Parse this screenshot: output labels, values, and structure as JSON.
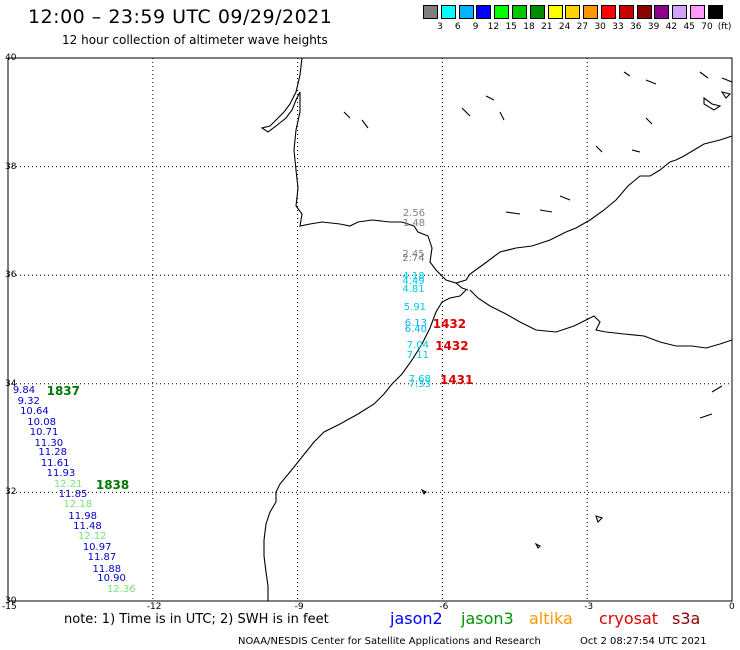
{
  "header": {
    "title": "12:00 – 23:59 UTC 09/29/2021",
    "subtitle": "12 hour collection of altimeter wave heights"
  },
  "scale": {
    "colors": [
      "#7f7f7f",
      "#00ffff",
      "#00b4ff",
      "#0000ff",
      "#00ff00",
      "#00c800",
      "#008c00",
      "#ffff00",
      "#ffd200",
      "#ff9600",
      "#ff0000",
      "#c80000",
      "#8c0000",
      "#8c008c",
      "#d2a0ff",
      "#ff99ff",
      "#000000"
    ],
    "labels": [
      "3",
      "6",
      "9",
      "12",
      "15",
      "18",
      "21",
      "24",
      "27",
      "30",
      "33",
      "36",
      "39",
      "42",
      "45",
      "70"
    ],
    "unit": "(ft)"
  },
  "axes": {
    "lat_labels": [
      "40",
      "38",
      "36",
      "34",
      "32",
      "30"
    ],
    "lon_labels": [
      "-15",
      "-12",
      "-9",
      "-6",
      "-3",
      "0"
    ]
  },
  "observations": [
    {
      "v": "2.56",
      "lon": -6.82,
      "lat": 37.12,
      "c": "#7f7f7f"
    },
    {
      "v": "1.48",
      "lon": -6.82,
      "lat": 36.94,
      "c": "#7f7f7f"
    },
    {
      "v": "2.45",
      "lon": -6.83,
      "lat": 36.37,
      "c": "#7f7f7f"
    },
    {
      "v": "2.74",
      "lon": -6.83,
      "lat": 36.3,
      "c": "#7f7f7f"
    },
    {
      "v": "4.18",
      "lon": -6.83,
      "lat": 35.96,
      "c": "#00c8e6"
    },
    {
      "v": "4.49",
      "lon": -6.83,
      "lat": 35.87,
      "c": "#00c8e6"
    },
    {
      "v": "4.81",
      "lon": -6.83,
      "lat": 35.73,
      "c": "#00c8e6"
    },
    {
      "v": "5.91",
      "lon": -6.8,
      "lat": 35.4,
      "c": "#00c8e6"
    },
    {
      "v": "6.13",
      "lon": -6.78,
      "lat": 35.1,
      "c": "#00b4ff"
    },
    {
      "v": "6.40",
      "lon": -6.78,
      "lat": 35.0,
      "c": "#00b4ff"
    },
    {
      "v": "7.04",
      "lon": -6.74,
      "lat": 34.69,
      "c": "#00c8e6"
    },
    {
      "v": "7.11",
      "lon": -6.74,
      "lat": 34.51,
      "c": "#00c8e6"
    },
    {
      "v": "7.68",
      "lon": -6.7,
      "lat": 34.07,
      "c": "#00c8e6"
    },
    {
      "v": "7.33",
      "lon": -6.7,
      "lat": 33.98,
      "c": "#00c8e6"
    },
    {
      "v": "9.84",
      "lon": -14.9,
      "lat": 33.86,
      "c": "#0000c8"
    },
    {
      "v": "9.32",
      "lon": -14.8,
      "lat": 33.66,
      "c": "#0000c8"
    },
    {
      "v": "10.64",
      "lon": -14.75,
      "lat": 33.48,
      "c": "#0000c8"
    },
    {
      "v": "10.08",
      "lon": -14.6,
      "lat": 33.28,
      "c": "#0000c8"
    },
    {
      "v": "10.71",
      "lon": -14.55,
      "lat": 33.1,
      "c": "#0000c8"
    },
    {
      "v": "11.30",
      "lon": -14.45,
      "lat": 32.9,
      "c": "#0000c8"
    },
    {
      "v": "11.28",
      "lon": -14.37,
      "lat": 32.72,
      "c": "#0000c8"
    },
    {
      "v": "11.61",
      "lon": -14.32,
      "lat": 32.53,
      "c": "#0000c8"
    },
    {
      "v": "11.93",
      "lon": -14.2,
      "lat": 32.33,
      "c": "#0000c8"
    },
    {
      "v": "12.21",
      "lon": -14.05,
      "lat": 32.14,
      "c": "#78e678"
    },
    {
      "v": "11.85",
      "lon": -13.95,
      "lat": 31.95,
      "c": "#0000c8"
    },
    {
      "v": "12.18",
      "lon": -13.85,
      "lat": 31.76,
      "c": "#78e678"
    },
    {
      "v": "11.98",
      "lon": -13.75,
      "lat": 31.55,
      "c": "#0000c8"
    },
    {
      "v": "11.48",
      "lon": -13.65,
      "lat": 31.37,
      "c": "#0000c8"
    },
    {
      "v": "12.12",
      "lon": -13.55,
      "lat": 31.17,
      "c": "#78e678"
    },
    {
      "v": "10.97",
      "lon": -13.45,
      "lat": 30.98,
      "c": "#0000c8"
    },
    {
      "v": "11.87",
      "lon": -13.35,
      "lat": 30.79,
      "c": "#0000c8"
    },
    {
      "v": "11.88",
      "lon": -13.25,
      "lat": 30.58,
      "c": "#0000c8"
    },
    {
      "v": "10.90",
      "lon": -13.15,
      "lat": 30.4,
      "c": "#0000c8"
    },
    {
      "v": "12.36",
      "lon": -12.95,
      "lat": 30.2,
      "c": "#78e678"
    }
  ],
  "times": [
    {
      "v": "1432",
      "lon": -6.2,
      "lat": 35.1,
      "c": "#dc0000"
    },
    {
      "v": "1432",
      "lon": -6.15,
      "lat": 34.69,
      "c": "#dc0000"
    },
    {
      "v": "1431",
      "lon": -6.05,
      "lat": 34.07,
      "c": "#dc0000"
    },
    {
      "v": "1837",
      "lon": -14.2,
      "lat": 33.86,
      "c": "#007800"
    },
    {
      "v": "1838",
      "lon": -13.18,
      "lat": 32.14,
      "c": "#007800"
    }
  ],
  "footer": {
    "note": "note:  1) Time is in UTC;  2) SWH is in feet",
    "satellites": [
      {
        "name": "jason2",
        "color": "#0000ff"
      },
      {
        "name": "jason3",
        "color": "#009600"
      },
      {
        "name": "altika",
        "color": "#ff9600"
      },
      {
        "name": "cryosat",
        "color": "#dc0000"
      },
      {
        "name": "s3a",
        "color": "#8c0000"
      }
    ],
    "credit": "NOAA/NESDIS Center for Satellite Applications and Research",
    "timestamp": "Oct  2 08:27:54 UTC 2021"
  }
}
